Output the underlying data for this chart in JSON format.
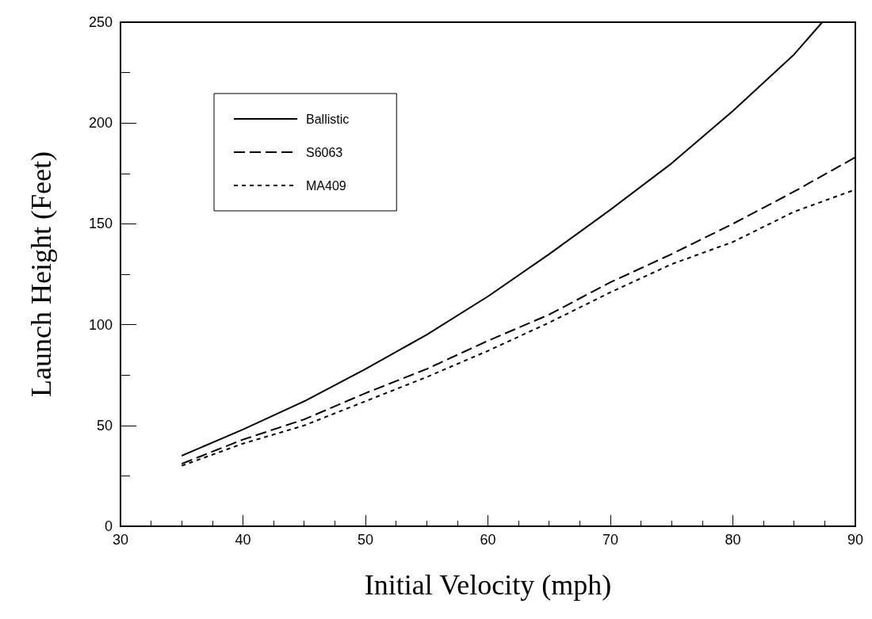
{
  "chart_data": {
    "type": "line",
    "xlabel": "Initial Velocity (mph)",
    "ylabel": "Launch Height (Feet)",
    "x": [
      35,
      40,
      45,
      50,
      55,
      60,
      65,
      70,
      75,
      80,
      85,
      87.3
    ],
    "series": [
      {
        "name": "Ballistic",
        "color": "#000000",
        "line_style": "solid",
        "values": [
          35,
          48,
          62,
          78,
          95,
          114,
          135,
          157,
          180,
          206,
          234,
          250
        ]
      },
      {
        "name": "S6063",
        "color": "#000000",
        "line_style": "dashed",
        "x": [
          35,
          40,
          45,
          50,
          55,
          60,
          65,
          70,
          75,
          80,
          85,
          90
        ],
        "values": [
          31,
          43,
          53,
          66,
          78,
          92,
          105,
          121,
          135,
          150,
          166,
          183
        ]
      },
      {
        "name": "MA409",
        "color": "#000000",
        "line_style": "dotted",
        "x": [
          35,
          40,
          45,
          50,
          55,
          60,
          65,
          70,
          75,
          80,
          85,
          90
        ],
        "values": [
          30,
          41,
          50,
          62,
          74,
          87,
          101,
          116,
          130,
          141,
          156,
          167
        ]
      }
    ],
    "xlim": [
      30,
      90
    ],
    "xticks": [
      30,
      40,
      50,
      60,
      70,
      80,
      90
    ],
    "ylim": [
      0,
      250
    ],
    "yticks": [
      0,
      50,
      100,
      150,
      200,
      250
    ],
    "grid": false,
    "legend": "top left",
    "marker": "none"
  }
}
